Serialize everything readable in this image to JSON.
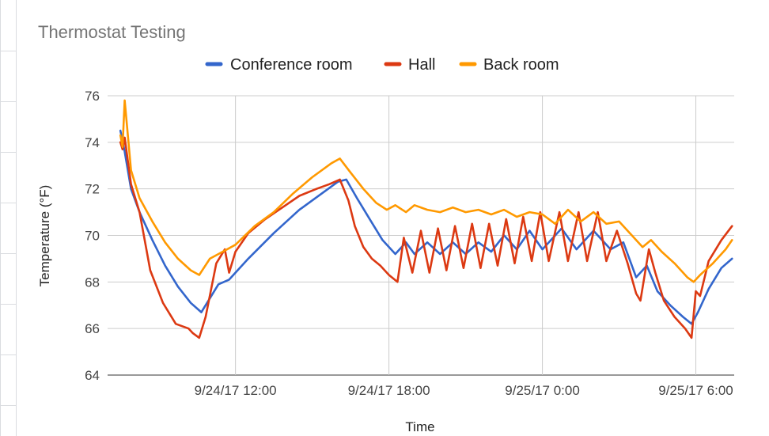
{
  "chart_data": {
    "type": "line",
    "title": "Thermostat Testing",
    "xlabel": "Time",
    "ylabel": "Temperature (°F)",
    "ylim": [
      64,
      76
    ],
    "yticks": [
      "64",
      "66",
      "68",
      "70",
      "72",
      "74",
      "76"
    ],
    "xlim_hours_label": "9/24/17 ~07:00 to 9/25/17 ~07:00",
    "xticks": [
      "9/24/17 12:00",
      "9/24/17 18:00",
      "9/25/17 0:00",
      "9/25/17 6:00"
    ],
    "grid": true,
    "legend_position": "top",
    "series": [
      {
        "name": "Conference room",
        "color": "#3366cc",
        "points": [
          [
            "9/24/17 07:30",
            74.5
          ],
          [
            "9/24/17 07:40",
            73.6
          ],
          [
            "9/24/17 07:55",
            72.0
          ],
          [
            "9/24/17 08:15",
            71.0
          ],
          [
            "9/24/17 08:45",
            69.8
          ],
          [
            "9/24/17 09:15",
            68.7
          ],
          [
            "9/24/17 09:45",
            67.8
          ],
          [
            "9/24/17 10:15",
            67.1
          ],
          [
            "9/24/17 10:40",
            66.7
          ],
          [
            "9/24/17 11:00",
            67.3
          ],
          [
            "9/24/17 11:20",
            67.9
          ],
          [
            "9/24/17 11:45",
            68.1
          ],
          [
            "9/24/17 12:30",
            69.0
          ],
          [
            "9/24/17 13:30",
            70.1
          ],
          [
            "9/24/17 14:30",
            71.1
          ],
          [
            "9/24/17 15:30",
            71.9
          ],
          [
            "9/24/17 16:00",
            72.3
          ],
          [
            "9/24/17 16:20",
            72.4
          ],
          [
            "9/24/17 16:45",
            71.6
          ],
          [
            "9/24/17 17:15",
            70.7
          ],
          [
            "9/24/17 17:45",
            69.8
          ],
          [
            "9/24/17 18:15",
            69.2
          ],
          [
            "9/24/17 18:40",
            69.7
          ],
          [
            "9/24/17 19:00",
            69.2
          ],
          [
            "9/24/17 19:30",
            69.7
          ],
          [
            "9/24/17 20:00",
            69.2
          ],
          [
            "9/24/17 20:30",
            69.7
          ],
          [
            "9/24/17 21:00",
            69.2
          ],
          [
            "9/24/17 21:30",
            69.7
          ],
          [
            "9/24/17 22:00",
            69.3
          ],
          [
            "9/24/17 22:30",
            70.0
          ],
          [
            "9/24/17 23:00",
            69.4
          ],
          [
            "9/24/17 23:30",
            70.2
          ],
          [
            "9/25/17 00:00",
            69.4
          ],
          [
            "9/25/17 00:45",
            70.3
          ],
          [
            "9/25/17 01:20",
            69.4
          ],
          [
            "9/25/17 02:00",
            70.2
          ],
          [
            "9/25/17 02:40",
            69.4
          ],
          [
            "9/25/17 03:10",
            69.7
          ],
          [
            "9/25/17 03:40",
            68.2
          ],
          [
            "9/25/17 04:05",
            68.7
          ],
          [
            "9/25/17 04:30",
            67.6
          ],
          [
            "9/25/17 05:00",
            67.0
          ],
          [
            "9/25/17 05:30",
            66.5
          ],
          [
            "9/25/17 05:50",
            66.2
          ],
          [
            "9/25/17 06:05",
            66.7
          ],
          [
            "9/25/17 06:30",
            67.7
          ],
          [
            "9/25/17 07:00",
            68.6
          ],
          [
            "9/25/17 07:25",
            69.0
          ]
        ]
      },
      {
        "name": "Hall",
        "color": "#dc3912",
        "points": [
          [
            "9/24/17 07:30",
            74.0
          ],
          [
            "9/24/17 07:35",
            73.7
          ],
          [
            "9/24/17 07:40",
            74.2
          ],
          [
            "9/24/17 07:55",
            72.2
          ],
          [
            "9/24/17 08:15",
            71.0
          ],
          [
            "9/24/17 08:40",
            68.5
          ],
          [
            "9/24/17 09:10",
            67.1
          ],
          [
            "9/24/17 09:40",
            66.2
          ],
          [
            "9/24/17 10:10",
            66.0
          ],
          [
            "9/24/17 10:20",
            65.8
          ],
          [
            "9/24/17 10:35",
            65.6
          ],
          [
            "9/24/17 10:50",
            66.5
          ],
          [
            "9/24/17 11:15",
            68.8
          ],
          [
            "9/24/17 11:35",
            69.4
          ],
          [
            "9/24/17 11:45",
            68.4
          ],
          [
            "9/24/17 12:00",
            69.3
          ],
          [
            "9/24/17 12:30",
            70.1
          ],
          [
            "9/24/17 13:10",
            70.7
          ],
          [
            "9/24/17 13:50",
            71.2
          ],
          [
            "9/24/17 14:30",
            71.7
          ],
          [
            "9/24/17 15:10",
            72.0
          ],
          [
            "9/24/17 15:40",
            72.2
          ],
          [
            "9/24/17 16:05",
            72.4
          ],
          [
            "9/24/17 16:25",
            71.5
          ],
          [
            "9/24/17 16:40",
            70.4
          ],
          [
            "9/24/17 17:00",
            69.5
          ],
          [
            "9/24/17 17:20",
            69.0
          ],
          [
            "9/24/17 17:40",
            68.7
          ],
          [
            "9/24/17 18:00",
            68.3
          ],
          [
            "9/24/17 18:20",
            68.0
          ],
          [
            "9/24/17 18:35",
            69.9
          ],
          [
            "9/24/17 18:55",
            68.4
          ],
          [
            "9/24/17 19:15",
            70.2
          ],
          [
            "9/24/17 19:35",
            68.4
          ],
          [
            "9/24/17 19:55",
            70.3
          ],
          [
            "9/24/17 20:15",
            68.5
          ],
          [
            "9/24/17 20:35",
            70.4
          ],
          [
            "9/24/17 20:55",
            68.6
          ],
          [
            "9/24/17 21:15",
            70.5
          ],
          [
            "9/24/17 21:35",
            68.6
          ],
          [
            "9/24/17 21:55",
            70.5
          ],
          [
            "9/24/17 22:15",
            68.7
          ],
          [
            "9/24/17 22:35",
            70.7
          ],
          [
            "9/24/17 22:55",
            68.8
          ],
          [
            "9/24/17 23:15",
            70.8
          ],
          [
            "9/24/17 23:35",
            68.9
          ],
          [
            "9/24/17 23:55",
            71.0
          ],
          [
            "9/25/17 00:15",
            68.9
          ],
          [
            "9/25/17 00:40",
            71.0
          ],
          [
            "9/25/17 01:00",
            68.9
          ],
          [
            "9/25/17 01:25",
            71.0
          ],
          [
            "9/25/17 01:45",
            68.9
          ],
          [
            "9/25/17 02:10",
            71.0
          ],
          [
            "9/25/17 02:30",
            68.9
          ],
          [
            "9/25/17 02:55",
            70.2
          ],
          [
            "9/25/17 03:20",
            68.8
          ],
          [
            "9/25/17 03:40",
            67.5
          ],
          [
            "9/25/17 03:50",
            67.2
          ],
          [
            "9/25/17 04:10",
            69.4
          ],
          [
            "9/25/17 04:25",
            68.4
          ],
          [
            "9/25/17 04:45",
            67.2
          ],
          [
            "9/25/17 05:10",
            66.5
          ],
          [
            "9/25/17 05:35",
            66.0
          ],
          [
            "9/25/17 05:50",
            65.6
          ],
          [
            "9/25/17 06:00",
            67.6
          ],
          [
            "9/25/17 06:10",
            67.4
          ],
          [
            "9/25/17 06:30",
            68.9
          ],
          [
            "9/25/17 07:00",
            69.8
          ],
          [
            "9/25/17 07:25",
            70.4
          ]
        ]
      },
      {
        "name": "Back room",
        "color": "#ff9900",
        "points": [
          [
            "9/24/17 07:30",
            74.3
          ],
          [
            "9/24/17 07:35",
            73.8
          ],
          [
            "9/24/17 07:40",
            75.8
          ],
          [
            "9/24/17 07:55",
            72.8
          ],
          [
            "9/24/17 08:15",
            71.6
          ],
          [
            "9/24/17 08:45",
            70.6
          ],
          [
            "9/24/17 09:15",
            69.7
          ],
          [
            "9/24/17 09:45",
            69.0
          ],
          [
            "9/24/17 10:15",
            68.5
          ],
          [
            "9/24/17 10:35",
            68.3
          ],
          [
            "9/24/17 11:00",
            69.0
          ],
          [
            "9/24/17 11:30",
            69.3
          ],
          [
            "9/24/17 12:00",
            69.6
          ],
          [
            "9/24/17 12:45",
            70.4
          ],
          [
            "9/24/17 13:30",
            71.0
          ],
          [
            "9/24/17 14:15",
            71.8
          ],
          [
            "9/24/17 15:00",
            72.5
          ],
          [
            "9/24/17 15:45",
            73.1
          ],
          [
            "9/24/17 16:05",
            73.3
          ],
          [
            "9/24/17 16:30",
            72.7
          ],
          [
            "9/24/17 17:00",
            72.0
          ],
          [
            "9/24/17 17:30",
            71.4
          ],
          [
            "9/24/17 17:55",
            71.1
          ],
          [
            "9/24/17 18:15",
            71.3
          ],
          [
            "9/24/17 18:40",
            71.0
          ],
          [
            "9/24/17 19:00",
            71.3
          ],
          [
            "9/24/17 19:30",
            71.1
          ],
          [
            "9/24/17 20:00",
            71.0
          ],
          [
            "9/24/17 20:30",
            71.2
          ],
          [
            "9/24/17 21:00",
            71.0
          ],
          [
            "9/24/17 21:30",
            71.1
          ],
          [
            "9/24/17 22:00",
            70.9
          ],
          [
            "9/24/17 22:30",
            71.1
          ],
          [
            "9/24/17 23:00",
            70.8
          ],
          [
            "9/24/17 23:30",
            71.0
          ],
          [
            "9/25/17 00:00",
            70.9
          ],
          [
            "9/25/17 00:30",
            70.5
          ],
          [
            "9/25/17 01:00",
            71.1
          ],
          [
            "9/25/17 01:30",
            70.6
          ],
          [
            "9/25/17 02:00",
            71.0
          ],
          [
            "9/25/17 02:30",
            70.5
          ],
          [
            "9/25/17 03:00",
            70.6
          ],
          [
            "9/25/17 03:30",
            70.0
          ],
          [
            "9/25/17 03:55",
            69.5
          ],
          [
            "9/25/17 04:15",
            69.8
          ],
          [
            "9/25/17 04:40",
            69.3
          ],
          [
            "9/25/17 05:10",
            68.8
          ],
          [
            "9/25/17 05:40",
            68.2
          ],
          [
            "9/25/17 05:55",
            68.0
          ],
          [
            "9/25/17 06:10",
            68.3
          ],
          [
            "9/25/17 06:40",
            68.8
          ],
          [
            "9/25/17 07:10",
            69.4
          ],
          [
            "9/25/17 07:25",
            69.8
          ]
        ]
      }
    ]
  }
}
